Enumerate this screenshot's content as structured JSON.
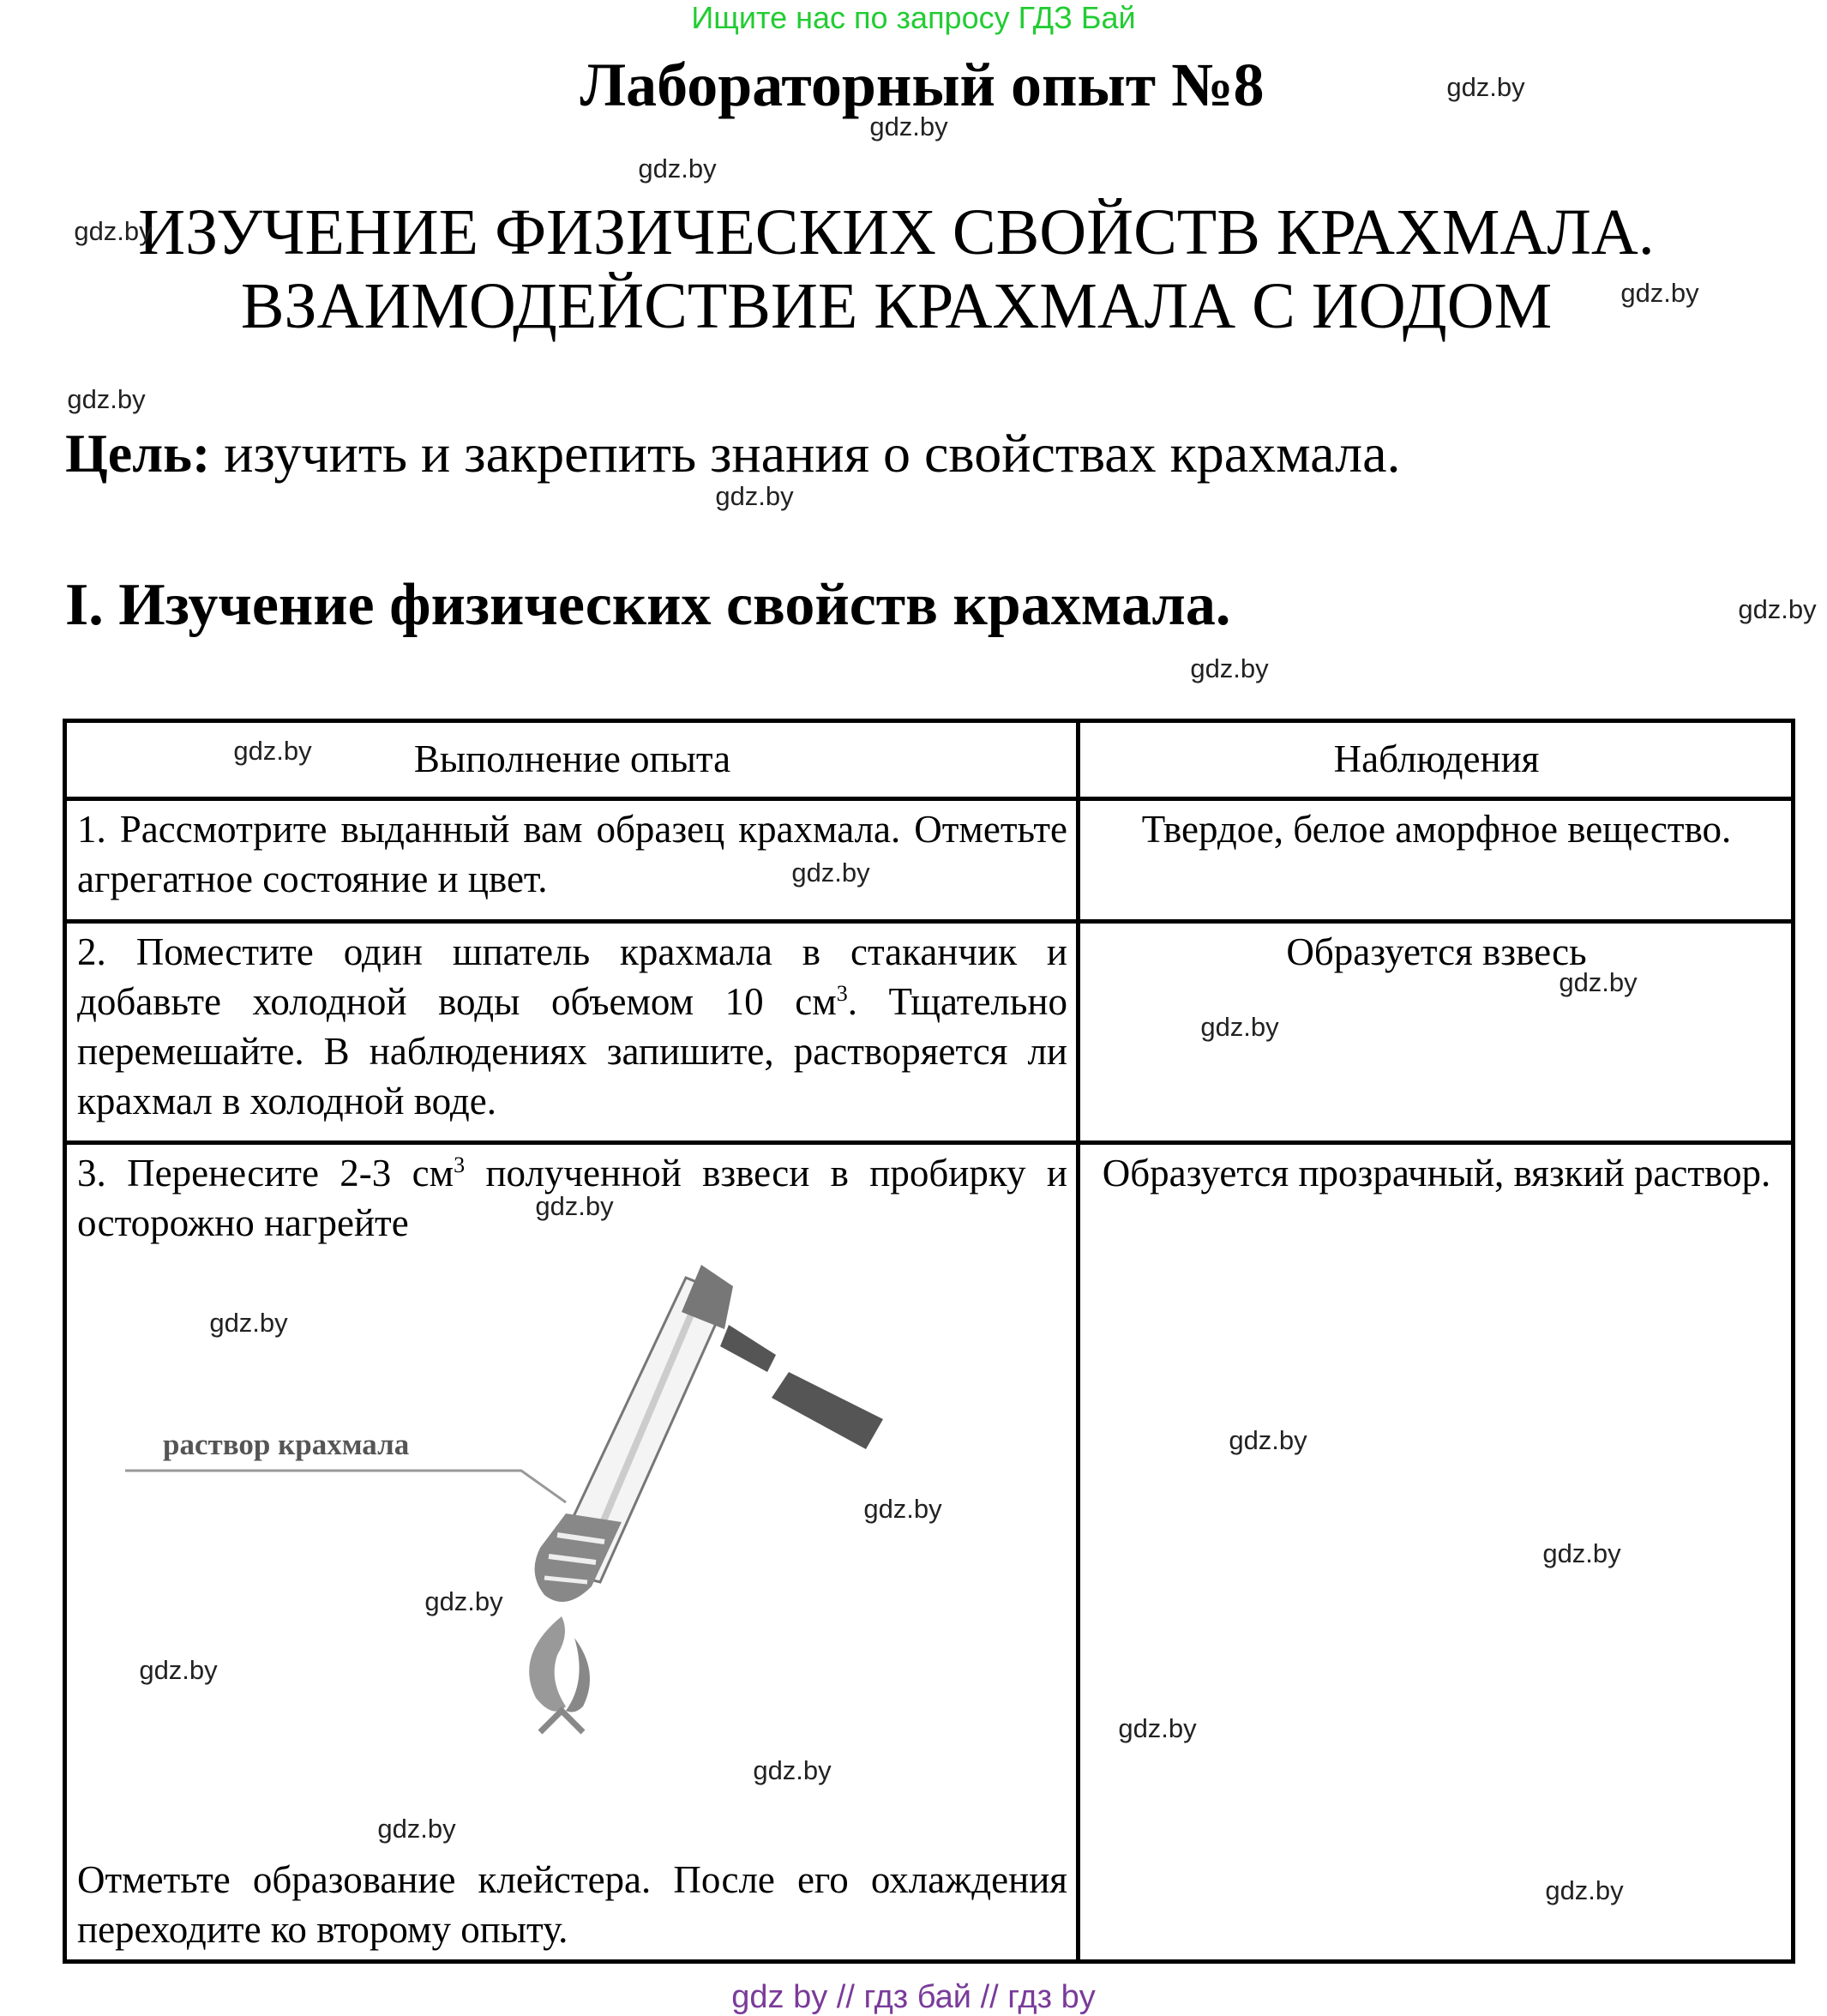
{
  "banner": "Ищите нас по запросу ГДЗ Бай",
  "title": "Лабораторный опыт №8",
  "subtitle": {
    "line1": "ИЗУЧЕНИЕ ФИЗИЧЕСКИХ СВОЙСТВ КРАХМАЛА.",
    "line2": "ВЗАИМОДЕЙСТВИЕ КРАХМАЛА С ИОДОМ"
  },
  "goal": {
    "label": "Цель:",
    "text": "изучить и закрепить знания о свойствах крахмала."
  },
  "section_heading": "I. Изучение физических свойств крахмала.",
  "table": {
    "headers": [
      "Выполнение опыта",
      "Наблюдения"
    ],
    "rows": [
      {
        "procedure": "1. Рассмотрите выданный вам образец крахмала. Отметьте агрегатное состояние и цвет.",
        "observation": "Твердое, белое аморфное вещество."
      },
      {
        "procedure_a": "2. Поместите один шпатель крахмала в стаканчик и добавьте холодной воды объемом 10 см",
        "procedure_sup": "3",
        "procedure_b": ". Тщательно перемешайте. В наблюдениях запишите, растворяется ли крахмал в холодной воде.",
        "observation": "Образуется взвесь"
      },
      {
        "procedure_a": "3. Перенесите 2-3 см",
        "procedure_sup": "3",
        "procedure_b": " полученной взвеси в пробирку и осторожно нагрейте",
        "figure_label": "раствор крахмала",
        "procedure_after": "Отметьте образование клейстера. После его охлаждения переходите ко второму опыту.",
        "observation": "Образуется прозрачный, вязкий раствор."
      }
    ]
  },
  "watermark": "gdz.by",
  "footer": "gdz by  //  гдз бай  //  гдз by",
  "colors": {
    "banner": "#22cc33",
    "footer": "#7a3b9a"
  }
}
